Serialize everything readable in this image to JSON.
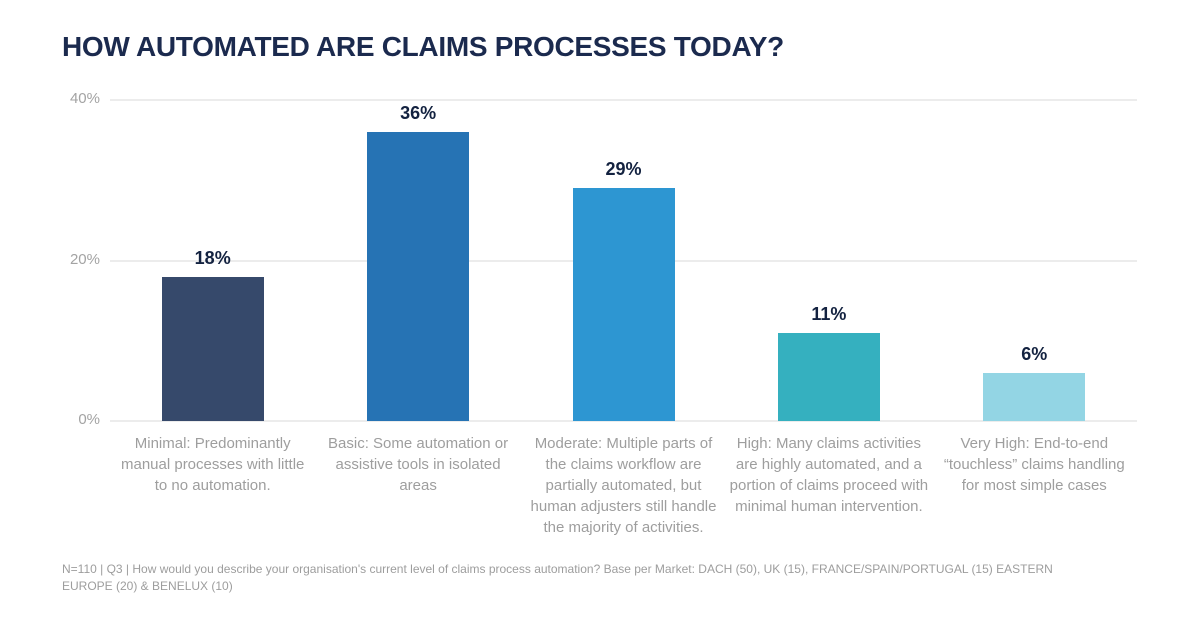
{
  "title": "HOW AUTOMATED ARE CLAIMS PROCESSES TODAY?",
  "footnote": "N=110 | Q3 | How would you describe your organisation's current level of claims process automation? Base per Market: DACH (50), UK (15), FRANCE/SPAIN/PORTUGAL (15) EASTERN\nEUROPE (20) & BENELUX (10)",
  "chart_data": {
    "type": "bar",
    "title": "HOW AUTOMATED ARE CLAIMS PROCESSES TODAY?",
    "categories": [
      "Minimal: Predominantly manual processes with little to no automation.",
      "Basic: Some automation or assistive tools in isolated areas",
      "Moderate: Multiple parts of the claims workflow are partially automated, but human adjusters still handle the majority of activities.",
      "High: Many claims activities are highly automated, and a portion of claims proceed with minimal human intervention.",
      "Very High: End-to-end “touchless” claims handling for most simple cases"
    ],
    "values": [
      18,
      36,
      29,
      11,
      6
    ],
    "value_labels": [
      "18%",
      "36%",
      "29%",
      "11%",
      "6%"
    ],
    "bar_colors": [
      "#36496b",
      "#2673b4",
      "#2d96d2",
      "#35b0bf",
      "#93d5e4"
    ],
    "ylim": [
      0,
      40
    ],
    "yticks": [
      0,
      20,
      40
    ],
    "ytick_labels": [
      "0%",
      "20%",
      "40%"
    ],
    "grid": true,
    "legend": false,
    "xlabel": "",
    "ylabel": ""
  },
  "colors": {
    "background": "#ffffff",
    "title": "#1b2a4e",
    "data_label": "#132240",
    "axis_label": "#a3a3a3",
    "category_label": "#9e9e9e",
    "gridline": "#ececec",
    "footnote": "#9d9d9d"
  }
}
